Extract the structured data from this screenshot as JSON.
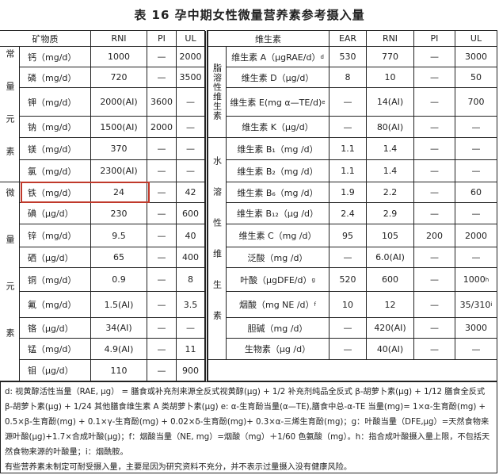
{
  "title": "表 16  孕中期女性微量营养素参考摄入量",
  "minerals": {
    "headers": [
      "矿物质",
      "RNI",
      "PI",
      "UL"
    ],
    "groups": [
      "常量元素",
      "微量元素"
    ],
    "rows": [
      {
        "name": "钙（mg/d）",
        "rni": "1000",
        "pi": "—",
        "ul": "2000"
      },
      {
        "name": "磷（mg/d）",
        "rni": "720",
        "pi": "—",
        "ul": "3500"
      },
      {
        "name": "钾（mg/d）",
        "rni": "2000(AI)",
        "pi": "3600",
        "ul": "—"
      },
      {
        "name": "钠（mg/d）",
        "rni": "1500(AI)",
        "pi": "2000",
        "ul": "—"
      },
      {
        "name": "镁（mg/d）",
        "rni": "370",
        "pi": "—",
        "ul": "—"
      },
      {
        "name": "氯（mg/d）",
        "rni": "2300(AI)",
        "pi": "—",
        "ul": "—"
      },
      {
        "name": "铁（mg/d）",
        "rni": "24",
        "pi": "—",
        "ul": "42",
        "highlighted": true
      },
      {
        "name": "碘（μg/d）",
        "rni": "230",
        "pi": "—",
        "ul": "600"
      },
      {
        "name": "锌（mg/d）",
        "rni": "9.5",
        "pi": "—",
        "ul": "40"
      },
      {
        "name": "硒（μg/d）",
        "rni": "65",
        "pi": "—",
        "ul": "400"
      },
      {
        "name": "铜（mg/d）",
        "rni": "0.9",
        "pi": "—",
        "ul": "8"
      },
      {
        "name": "氟（mg/d）",
        "rni": "1.5(AI)",
        "pi": "—",
        "ul": "3.5"
      },
      {
        "name": "铬（μg/d）",
        "rni": "34(AI)",
        "pi": "—",
        "ul": "—"
      },
      {
        "name": "锰（mg/d）",
        "rni": "4.9(AI)",
        "pi": "—",
        "ul": "11"
      },
      {
        "name": "钼（μg/d）",
        "rni": "110",
        "pi": "—",
        "ul": "900"
      }
    ]
  },
  "vitamins": {
    "headers": [
      "维生素",
      "EAR",
      "RNI",
      "PI",
      "UL"
    ],
    "groups": [
      "脂溶性维生素",
      "水溶性维生素"
    ],
    "rows": [
      {
        "name": "维生素 A（μgRAE/d）",
        "sup": "d",
        "ear": "530",
        "rni": "770",
        "pi": "—",
        "ul": "3000"
      },
      {
        "name": "维生素 D（μg/d）",
        "ear": "8",
        "rni": "10",
        "pi": "—",
        "ul": "50"
      },
      {
        "name": "维生素 E(mg α—TE/d)",
        "sup": "e",
        "ear": "—",
        "rni": "14(AI)",
        "pi": "—",
        "ul": "700"
      },
      {
        "name": "维生素 K（μg/d）",
        "ear": "—",
        "rni": "80(AI)",
        "pi": "—",
        "ul": "—"
      },
      {
        "name": "维生素 B₁（mg /d）",
        "ear": "1.1",
        "rni": "1.4",
        "pi": "—",
        "ul": "—"
      },
      {
        "name": "维生素 B₂（mg /d）",
        "ear": "1.1",
        "rni": "1.4",
        "pi": "—",
        "ul": "—"
      },
      {
        "name": "维生素 B₆（mg /d）",
        "ear": "1.9",
        "rni": "2.2",
        "pi": "—",
        "ul": "60"
      },
      {
        "name": "维生素 B₁₂（μg /d）",
        "ear": "2.4",
        "rni": "2.9",
        "pi": "—",
        "ul": "—"
      },
      {
        "name": "维生素 C（mg /d）",
        "ear": "95",
        "rni": "105",
        "pi": "200",
        "ul": "2000"
      },
      {
        "name": "泛酸（mg /d）",
        "ear": "—",
        "rni": "6.0(AI)",
        "pi": "—",
        "ul": "—"
      },
      {
        "name": "叶酸（μgDFE/d）",
        "sup": "g",
        "ear": "520",
        "rni": "600",
        "pi": "—",
        "ul": "1000",
        "ul_sup": "h"
      },
      {
        "name": "烟酸（mg NE /d）",
        "sup": "f",
        "ear": "10",
        "rni": "12",
        "pi": "—",
        "ul": "35/310",
        "ul_sup": "i"
      },
      {
        "name": "胆碱（mg /d）",
        "ear": "—",
        "rni": "420(AI)",
        "pi": "—",
        "ul": "3000"
      },
      {
        "name": "生物素（μg /d）",
        "ear": "—",
        "rni": "40(AI)",
        "pi": "—",
        "ul": "—"
      }
    ]
  },
  "footnotes": [
    "d: 视黄醇活性当量（RAE, μg） = 膳食或补充剂来源全反式视黄醇(μg) + 1/2 补充剂纯品全反式 β-胡萝卜素(μg) + 1/12 膳食全反式 β-胡萝卜素(μg) + 1/24 其他膳食维生素 A 类胡萝卜素(μg)   e: α-生育酚当量(α—TE),膳食中总-α-TE 当量(mg)= 1×α-生育酚(mg) + 0.5×β-生育酚(mg) + 0.1×γ-生育酚(mg) + 0.02×δ-生育酚(mg)+ 0.3×α-三烯生育酚(mg)；g：叶酸当量（DFE,μg）=天然食物来源叶酸(μg)+1.7×合成叶酸(μg)；f：烟酸当量（NE, mg）=烟酸（mg）＋1/60 色氨酸（mg）。h：指合成叶酸摄入量上限，不包括天然食物来源的叶酸量；i：烟酰胺。",
    "有些营养素未制定可耐受摄入量，主要是因为研究资料不充分，并不表示过量摄入没有健康风险。"
  ]
}
